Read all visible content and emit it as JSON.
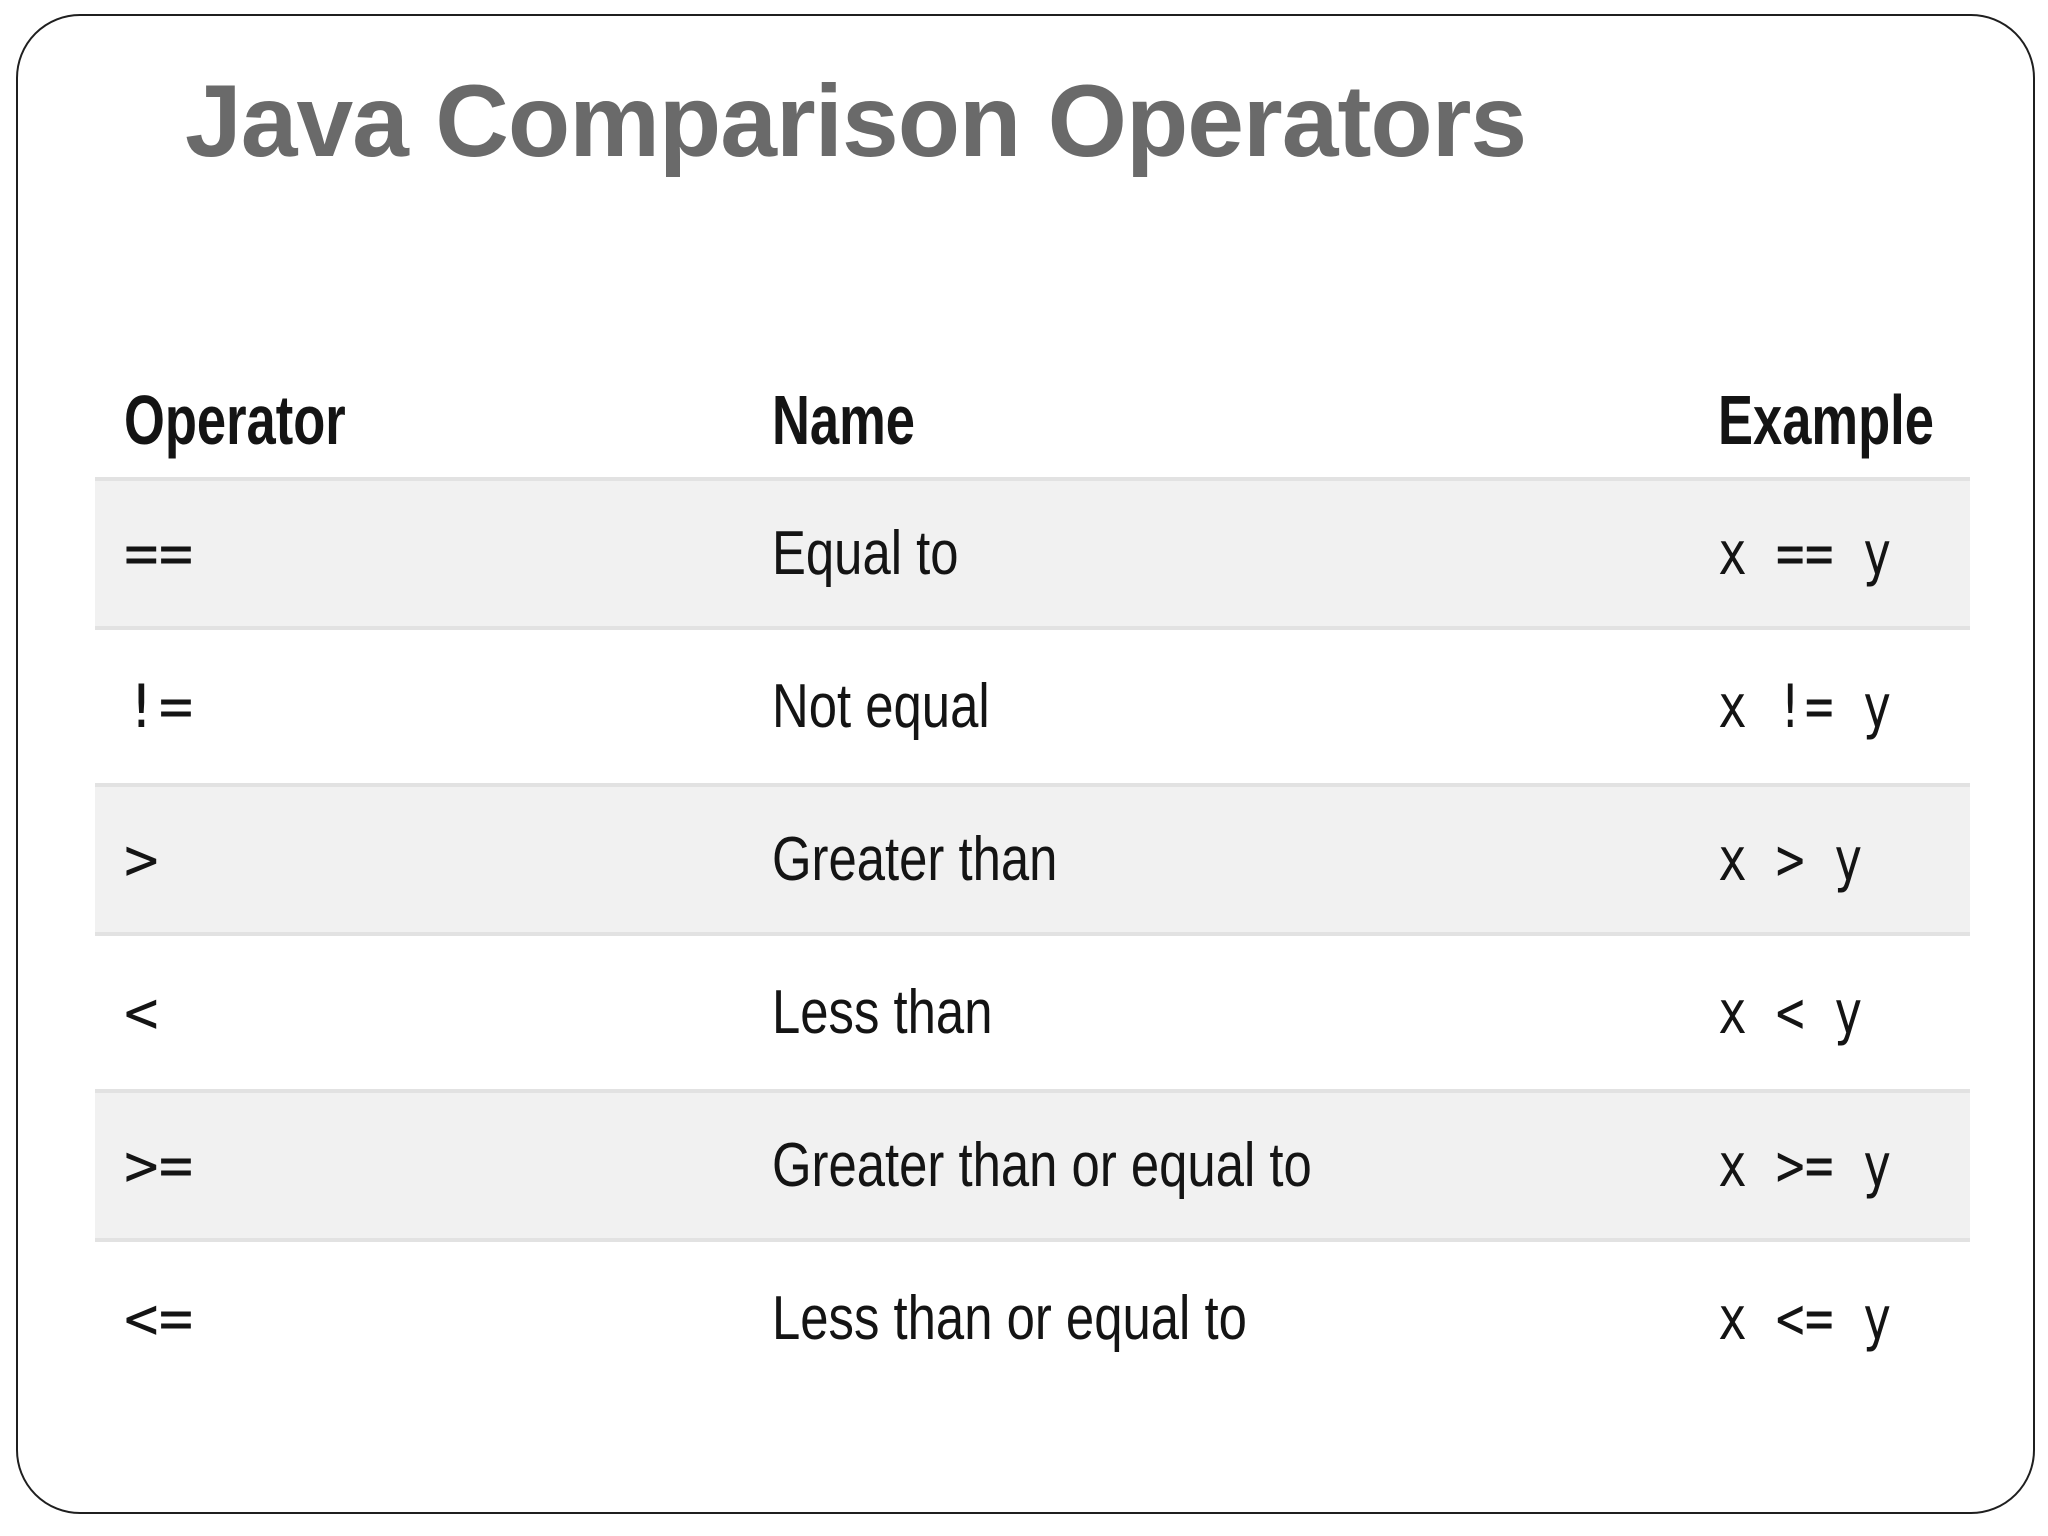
{
  "slide": {
    "title": "Java Comparison Operators"
  },
  "table": {
    "columns": [
      "Operator",
      "Name",
      "Example"
    ],
    "rows": [
      {
        "operator": "==",
        "name": "Equal to",
        "example": "x == y"
      },
      {
        "operator": "!=",
        "name": "Not equal",
        "example": "x != y"
      },
      {
        "operator": ">",
        "name": "Greater than",
        "example": "x > y"
      },
      {
        "operator": "<",
        "name": "Less than",
        "example": "x < y"
      },
      {
        "operator": ">=",
        "name": "Greater than or equal to",
        "example": "x >= y"
      },
      {
        "operator": "<=",
        "name": "Less than or equal to",
        "example": "x <= y"
      }
    ]
  },
  "colors": {
    "title_text": "#6a6a6a",
    "body_text": "#141414",
    "shaded_row_bg": "#f1f1f1",
    "row_border": "#e2e2e2",
    "slide_border": "#1f1f1f",
    "slide_bg": "#ffffff"
  }
}
